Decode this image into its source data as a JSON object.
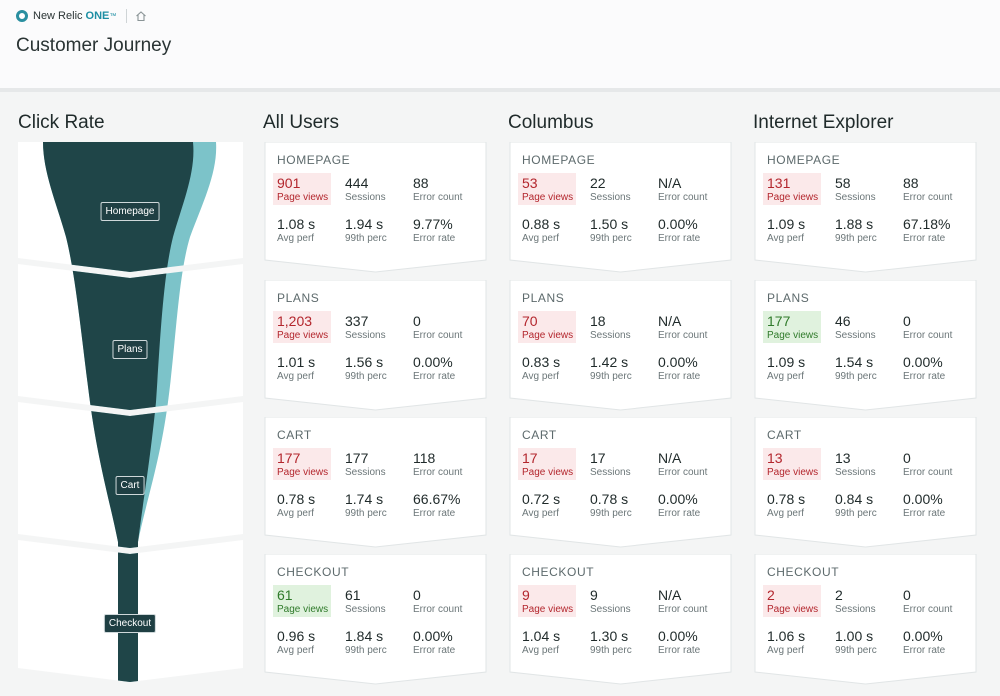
{
  "header": {
    "brand_name": "New Relic",
    "brand_one": "ONE",
    "brand_tm": "™",
    "page_title": "Customer Journey",
    "icons": [
      "new-relic-logo-icon",
      "home-icon"
    ]
  },
  "columns": {
    "click_rate": "Click Rate",
    "all_users": "All Users",
    "columbus": "Columbus",
    "ie": "Internet Explorer"
  },
  "funnel": {
    "steps": [
      "Homepage",
      "Plans",
      "Cart",
      "Checkout"
    ],
    "colors": {
      "main": "#1f4548",
      "edge": "#7cc3c9",
      "bg": "#ffffff"
    }
  },
  "labels": {
    "page_views": "Page views",
    "sessions": "Sessions",
    "error_count": "Error count",
    "avg_perf": "Avg perf",
    "p99": "99th perc",
    "error_rate": "Error rate"
  },
  "cards": {
    "all": [
      {
        "title": "HOMEPAGE",
        "page_views": "901",
        "sessions": "444",
        "error_count": "88",
        "avg_perf": "1.08 s",
        "p99": "1.94 s",
        "error_rate": "9.77%",
        "highlight": "red"
      },
      {
        "title": "PLANS",
        "page_views": "1,203",
        "sessions": "337",
        "error_count": "0",
        "avg_perf": "1.01 s",
        "p99": "1.56 s",
        "error_rate": "0.00%",
        "highlight": "red"
      },
      {
        "title": "CART",
        "page_views": "177",
        "sessions": "177",
        "error_count": "118",
        "avg_perf": "0.78 s",
        "p99": "1.74 s",
        "error_rate": "66.67%",
        "highlight": "red"
      },
      {
        "title": "CHECKOUT",
        "page_views": "61",
        "sessions": "61",
        "error_count": "0",
        "avg_perf": "0.96 s",
        "p99": "1.84 s",
        "error_rate": "0.00%",
        "highlight": "green"
      }
    ],
    "columbus": [
      {
        "title": "HOMEPAGE",
        "page_views": "53",
        "sessions": "22",
        "error_count": "N/A",
        "avg_perf": "0.88 s",
        "p99": "1.50 s",
        "error_rate": "0.00%",
        "highlight": "red"
      },
      {
        "title": "PLANS",
        "page_views": "70",
        "sessions": "18",
        "error_count": "N/A",
        "avg_perf": "0.83 s",
        "p99": "1.42 s",
        "error_rate": "0.00%",
        "highlight": "red"
      },
      {
        "title": "CART",
        "page_views": "17",
        "sessions": "17",
        "error_count": "N/A",
        "avg_perf": "0.72 s",
        "p99": "0.78 s",
        "error_rate": "0.00%",
        "highlight": "red"
      },
      {
        "title": "CHECKOUT",
        "page_views": "9",
        "sessions": "9",
        "error_count": "N/A",
        "avg_perf": "1.04 s",
        "p99": "1.30 s",
        "error_rate": "0.00%",
        "highlight": "red"
      }
    ],
    "ie": [
      {
        "title": "HOMEPAGE",
        "page_views": "131",
        "sessions": "58",
        "error_count": "88",
        "avg_perf": "1.09 s",
        "p99": "1.88 s",
        "error_rate": "67.18%",
        "highlight": "red"
      },
      {
        "title": "PLANS",
        "page_views": "177",
        "sessions": "46",
        "error_count": "0",
        "avg_perf": "1.09 s",
        "p99": "1.54 s",
        "error_rate": "0.00%",
        "highlight": "green"
      },
      {
        "title": "CART",
        "page_views": "13",
        "sessions": "13",
        "error_count": "0",
        "avg_perf": "0.78 s",
        "p99": "0.84 s",
        "error_rate": "0.00%",
        "highlight": "red"
      },
      {
        "title": "CHECKOUT",
        "page_views": "2",
        "sessions": "2",
        "error_count": "0",
        "avg_perf": "1.06 s",
        "p99": "1.00 s",
        "error_rate": "0.00%",
        "highlight": "red"
      }
    ]
  }
}
